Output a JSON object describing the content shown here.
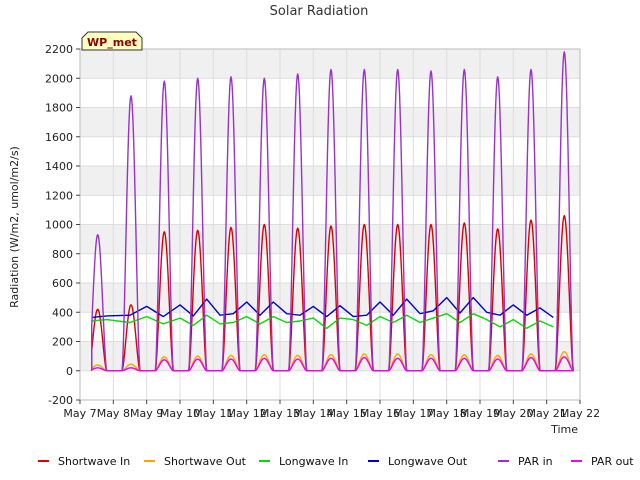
{
  "chart_data": {
    "type": "line",
    "title": "Solar Radiation",
    "site_label": "WP_met",
    "xlabel": "Time",
    "ylabel": "Radiation (W/m2, umol/m2/s)",
    "ylim": [
      -200,
      2200
    ],
    "yticks": [
      -200,
      0,
      200,
      400,
      600,
      800,
      1000,
      1200,
      1400,
      1600,
      1800,
      2000,
      2200
    ],
    "xlim": [
      7,
      22
    ],
    "xticks": [
      {
        "value": 7,
        "label": "May 7"
      },
      {
        "value": 8,
        "label": "May 8"
      },
      {
        "value": 9,
        "label": "May 9"
      },
      {
        "value": 10,
        "label": "May 10"
      },
      {
        "value": 11,
        "label": "May 11"
      },
      {
        "value": 12,
        "label": "May 12"
      },
      {
        "value": 13,
        "label": "May 13"
      },
      {
        "value": 14,
        "label": "May 14"
      },
      {
        "value": 15,
        "label": "May 15"
      },
      {
        "value": 16,
        "label": "May 16"
      },
      {
        "value": 17,
        "label": "May 17"
      },
      {
        "value": 18,
        "label": "May 18"
      },
      {
        "value": 19,
        "label": "May 19"
      },
      {
        "value": 20,
        "label": "May 20"
      },
      {
        "value": 21,
        "label": "May 21"
      },
      {
        "value": 22,
        "label": "May 22"
      }
    ],
    "grid": true,
    "legend_position": "bottom",
    "days": [
      7.35,
      8,
      9,
      10,
      11,
      12,
      13,
      14,
      15,
      16,
      17,
      18,
      19,
      20,
      21
    ],
    "series": [
      {
        "name": "Shortwave In",
        "color": "#dd0000",
        "kind": "diurnal",
        "daily_peaks": [
          420,
          450,
          950,
          960,
          980,
          1000,
          975,
          990,
          1000,
          1000,
          1000,
          1010,
          970,
          1030,
          1060
        ]
      },
      {
        "name": "Shortwave Out",
        "color": "#ffa500",
        "kind": "diurnal",
        "daily_peaks": [
          40,
          45,
          95,
          100,
          105,
          110,
          105,
          110,
          115,
          115,
          110,
          110,
          105,
          115,
          130
        ]
      },
      {
        "name": "Longwave In",
        "color": "#00dd00",
        "kind": "continuous",
        "x": [
          7.35,
          7.8,
          8.5,
          9.0,
          9.5,
          10.0,
          10.4,
          10.8,
          11.2,
          11.6,
          12.0,
          12.4,
          12.8,
          13.2,
          13.6,
          14.0,
          14.4,
          14.8,
          15.2,
          15.6,
          16.0,
          16.4,
          16.8,
          17.2,
          17.6,
          18.0,
          18.4,
          18.8,
          19.2,
          19.6,
          20.0,
          20.4,
          20.8,
          21.2
        ],
        "y": [
          340,
          350,
          330,
          370,
          320,
          360,
          310,
          380,
          320,
          330,
          370,
          320,
          370,
          330,
          340,
          360,
          290,
          360,
          350,
          310,
          370,
          330,
          380,
          330,
          360,
          390,
          330,
          390,
          350,
          300,
          350,
          290,
          340,
          300
        ]
      },
      {
        "name": "Longwave Out",
        "color": "#0000cc",
        "kind": "continuous",
        "x": [
          7.35,
          7.8,
          8.5,
          9.0,
          9.5,
          10.0,
          10.4,
          10.8,
          11.2,
          11.6,
          12.0,
          12.4,
          12.8,
          13.2,
          13.6,
          14.0,
          14.4,
          14.8,
          15.2,
          15.6,
          16.0,
          16.4,
          16.8,
          17.2,
          17.6,
          18.0,
          18.4,
          18.8,
          19.2,
          19.6,
          20.0,
          20.4,
          20.8,
          21.2
        ],
        "y": [
          365,
          375,
          380,
          440,
          370,
          450,
          375,
          490,
          380,
          390,
          470,
          380,
          470,
          390,
          380,
          440,
          370,
          445,
          370,
          380,
          470,
          380,
          490,
          390,
          410,
          500,
          395,
          500,
          400,
          380,
          450,
          380,
          430,
          365
        ]
      },
      {
        "name": "PAR in",
        "color": "#9932cc",
        "kind": "diurnal",
        "daily_peaks": [
          930,
          1880,
          1980,
          2000,
          2010,
          2000,
          2030,
          2060,
          2060,
          2060,
          2050,
          2060,
          2010,
          2060,
          2180
        ]
      },
      {
        "name": "PAR out",
        "color": "#ee00ee",
        "kind": "diurnal",
        "daily_peaks": [
          20,
          20,
          75,
          80,
          80,
          85,
          80,
          85,
          90,
          85,
          85,
          85,
          80,
          90,
          95
        ]
      }
    ]
  }
}
